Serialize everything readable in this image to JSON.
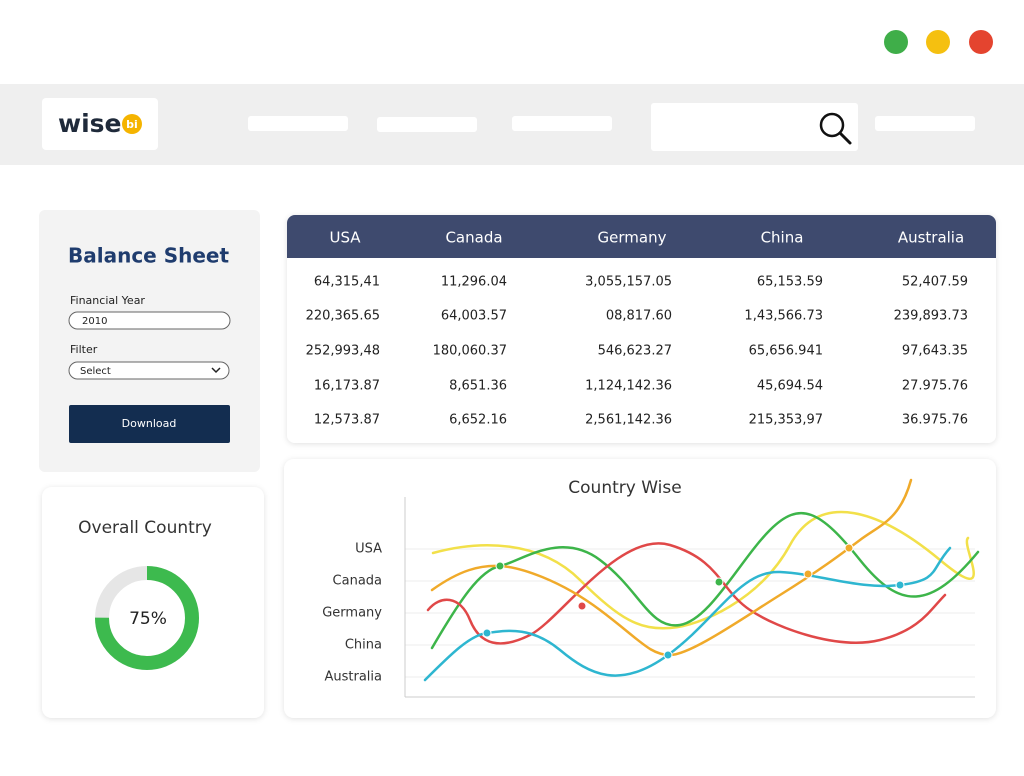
{
  "header": {
    "logo": {
      "word": "wise",
      "badge": "bi"
    }
  },
  "sidebar": {
    "title": "Balance Sheet",
    "financial_year": {
      "label": "Financial Year",
      "value": "2010"
    },
    "filter": {
      "label": "Filter",
      "value": "Select"
    },
    "button": "Download"
  },
  "table": {
    "columns": [
      "USA",
      "Canada",
      "Germany",
      "China",
      "Australia"
    ],
    "rows": [
      [
        "64,315,41",
        "11,296.04",
        "3,055,157.05",
        "65,153.59",
        "52,407.59"
      ],
      [
        "220,365.65",
        "64,003.57",
        "08,817.60",
        "1,43,566.73",
        "239,893.73"
      ],
      [
        "252,993,48",
        "180,060.37",
        "546,623.27",
        "65,656.941",
        "97,643.35"
      ],
      [
        "16,173.87",
        "8,651.36",
        "1,124,142.36",
        "45,694.54",
        "27.975.76"
      ],
      [
        "12,573.87",
        "6,652.16",
        "2,561,142.36",
        "215,353,97",
        "36.975.76"
      ]
    ]
  },
  "donut": {
    "title": "Overall Country",
    "value": 75,
    "label": "75%"
  },
  "line_card": {
    "title": "Country Wise",
    "labels": [
      "USA",
      "Canada",
      "Germany",
      "China",
      "Australia"
    ]
  }
}
